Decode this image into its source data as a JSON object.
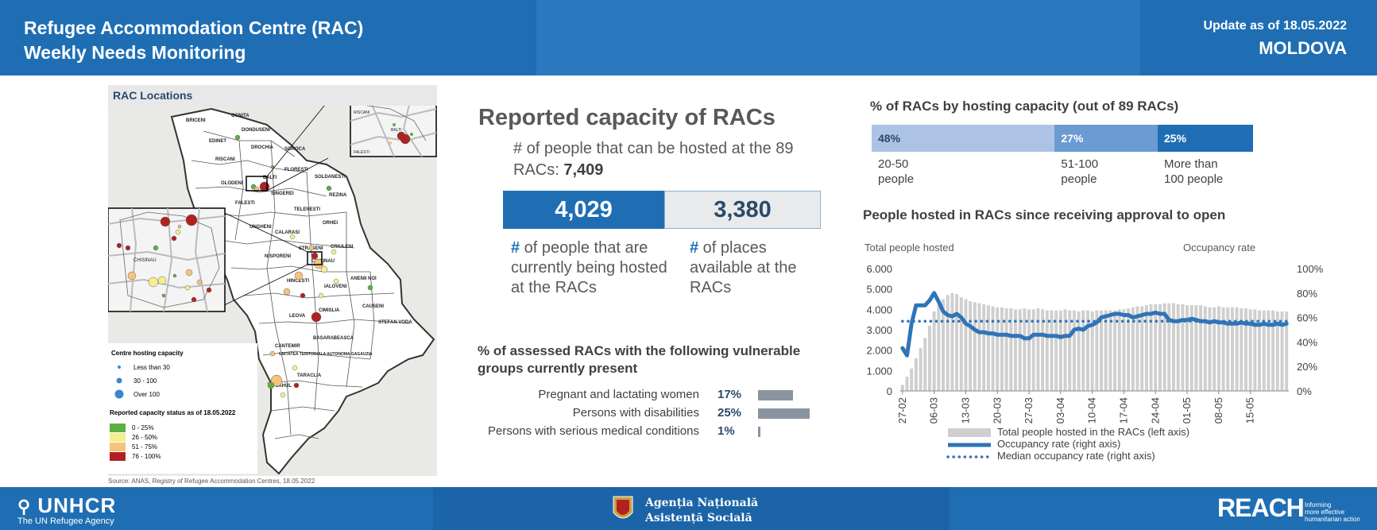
{
  "header": {
    "title_line1": "Refugee Accommodation Centre (RAC)",
    "title_line2": "Weekly Needs Monitoring",
    "update": "Update as of 18.05.2022",
    "country": "MOLDOVA"
  },
  "map": {
    "title": "RAC Locations",
    "source": "Source: ANAS, Registry of Refugee Accommodation Centres, 18.05.2022",
    "place_labels": [
      "BRICENI",
      "OCNITA",
      "DONDUSENI",
      "EDINET",
      "DROCHIA",
      "SOROCA",
      "RISCANI",
      "FLORESTI",
      "GLODENI",
      "BALTI",
      "SOLDANESTI",
      "SINGEREI",
      "REZINA",
      "FALESTI",
      "TELENESTI",
      "ORHEI",
      "UNGHENI",
      "CALARASI",
      "STRASENI",
      "CRIULENI",
      "NISPORENI",
      "CHISINAU",
      "HINCESTI",
      "IALOVENI",
      "ANENII NOI",
      "CAUSENI",
      "LEOVA",
      "CIMISLIA",
      "STEFAN VODA",
      "BASARABEASCA",
      "CANTEMIR",
      "UNITATEA TERITORIALA AUTONOMA GAGAUZIA",
      "TARACLIA",
      "CAHUL"
    ],
    "inset_balti_labels": [
      "RISCANI",
      "BALTI",
      "FALESTI"
    ],
    "inset_chisinau_label": "CHISINAU",
    "legend": {
      "capacity_title": "Centre hosting capacity",
      "capacity_items": [
        "Less than 30",
        "30 - 100",
        "Over 100"
      ],
      "status_title": "Reported capacity status as of 18.05.2022",
      "status_items": [
        {
          "label": "0 - 25%",
          "color": "#5ab043"
        },
        {
          "label": "26 - 50%",
          "color": "#f3ef8f"
        },
        {
          "label": "51 - 75%",
          "color": "#f6c27c"
        },
        {
          "label": "76 - 100%",
          "color": "#b02222"
        }
      ]
    }
  },
  "capacity": {
    "title": "Reported capacity of RACs",
    "subtitle_prefix": "# of people that can be hosted at the 89 RACs: ",
    "subtitle_value": "7,409",
    "hosted_value": "4,029",
    "available_value": "3,380",
    "hash": "#",
    "hosted_label": " of people that are currently being hosted at the RACs",
    "available_label": " of places available at the RACs"
  },
  "vulnerable": {
    "title": "% of assessed RACs with the following vulnerable groups currently present",
    "rows": [
      {
        "label": "Pregnant and lactating women",
        "pct_text": "17%",
        "value": 17
      },
      {
        "label": "Persons with disabilities",
        "pct_text": "25%",
        "value": 25
      },
      {
        "label": "Persons with serious medical conditions",
        "pct_text": "1%",
        "value": 1
      }
    ]
  },
  "hosting": {
    "title": "% of RACs by hosting capacity (out of 89 RACs)",
    "segments": [
      {
        "pct_text": "48%",
        "value": 48,
        "label_l1": "20-50",
        "label_l2": "people",
        "color": "#adc3e5"
      },
      {
        "pct_text": "27%",
        "value": 27,
        "label_l1": "51-100",
        "label_l2": "people",
        "color": "#6a9bd3"
      },
      {
        "pct_text": "25%",
        "value": 25,
        "label_l1": "More than",
        "label_l2": "100 people",
        "color": "#1f6eb4"
      }
    ]
  },
  "people_chart": {
    "title": "People hosted in RACs since receiving approval to open",
    "left_axis_title": "Total people hosted",
    "right_axis_title": "Occupancy rate"
  },
  "chart_data": {
    "type": "bar",
    "title": "People hosted in RACs since receiving approval to open",
    "ylabel": "Total people hosted",
    "y2label": "Occupancy rate",
    "ylim": [
      0,
      6000
    ],
    "y2lim": [
      0,
      100
    ],
    "yticks": [
      "0",
      "1.000",
      "2.000",
      "3.000",
      "4.000",
      "5.000",
      "6.000"
    ],
    "y2ticks": [
      "0%",
      "20%",
      "40%",
      "60%",
      "80%",
      "100%"
    ],
    "xticks": [
      "27-02",
      "06-03",
      "13-03",
      "20-03",
      "27-03",
      "03-04",
      "10-04",
      "17-04",
      "24-04",
      "01-05",
      "08-05",
      "15-05"
    ],
    "series": [
      {
        "name": "Total people hosted in the RACs (left axis)",
        "kind": "bar",
        "color": "#cfcfcf",
        "values": [
          300,
          700,
          1100,
          1600,
          2100,
          2600,
          3200,
          3900,
          4200,
          4500,
          4700,
          4800,
          4750,
          4600,
          4500,
          4400,
          4350,
          4300,
          4250,
          4200,
          4150,
          4100,
          4100,
          4050,
          4050,
          4000,
          4000,
          4050,
          4000,
          4000,
          4050,
          4000,
          3950,
          3950,
          3950,
          3950,
          4000,
          3950,
          3950,
          3900,
          3950,
          3950,
          3900,
          3950,
          3950,
          3950,
          3950,
          3950,
          4000,
          4000,
          4050,
          4100,
          4150,
          4150,
          4200,
          4250,
          4250,
          4250,
          4300,
          4300,
          4300,
          4250,
          4250,
          4200,
          4200,
          4200,
          4200,
          4150,
          4100,
          4100,
          4150,
          4100,
          4100,
          4100,
          4100,
          4050,
          4050,
          4000,
          4000,
          3950,
          3950,
          3950,
          3950,
          3900,
          3900,
          3900
        ]
      },
      {
        "name": "Occupancy rate (right axis)",
        "kind": "line",
        "color": "#2f74b8",
        "values": [
          35,
          29,
          55,
          70,
          70,
          70,
          74,
          80,
          73,
          65,
          62,
          61,
          63,
          60,
          55,
          53,
          50,
          48,
          48,
          47,
          47,
          46,
          46,
          46,
          45,
          45,
          45,
          43,
          43,
          46,
          46,
          46,
          45,
          45,
          45,
          44,
          45,
          45,
          50,
          51,
          50,
          53,
          54,
          56,
          60,
          61,
          62,
          63,
          63,
          62,
          62,
          60,
          61,
          62,
          63,
          63,
          64,
          63,
          63,
          58,
          57,
          57,
          58,
          58,
          59,
          58,
          57,
          57,
          56,
          57,
          56,
          56,
          55,
          55,
          55,
          56,
          55,
          55,
          54,
          54,
          55,
          54,
          54,
          55,
          54,
          55
        ]
      },
      {
        "name": "Median occupancy rate (right axis)",
        "kind": "line",
        "dashed": true,
        "color": "#2f74b8",
        "values": [
          57,
          57,
          57,
          57,
          57,
          57,
          57,
          57,
          57,
          57,
          57,
          57,
          57,
          57,
          57,
          57,
          57,
          57,
          57,
          57,
          57,
          57,
          57,
          57,
          57,
          57,
          57,
          57,
          57,
          57,
          57,
          57,
          57,
          57,
          57,
          57,
          57,
          57,
          57,
          57,
          57,
          57,
          57,
          57,
          57,
          57,
          57,
          57,
          57,
          57,
          57,
          57,
          57,
          57,
          57,
          57,
          57,
          57,
          57,
          57,
          57,
          57,
          57,
          57,
          57,
          57,
          57,
          57,
          57,
          57,
          57,
          57,
          57,
          57,
          57,
          57,
          57,
          57,
          57,
          57,
          57,
          57,
          57,
          57,
          57,
          57
        ]
      }
    ]
  },
  "footer": {
    "unhcr_name": "UNHCR",
    "unhcr_sub": "The UN Refugee Agency",
    "anas_line1": "Agenția Națională",
    "anas_line2": "Asistență Socială",
    "reach_name": "REACH",
    "reach_tag_1": "Informing",
    "reach_tag_2": "more effective",
    "reach_tag_3": "humanitarian action"
  }
}
